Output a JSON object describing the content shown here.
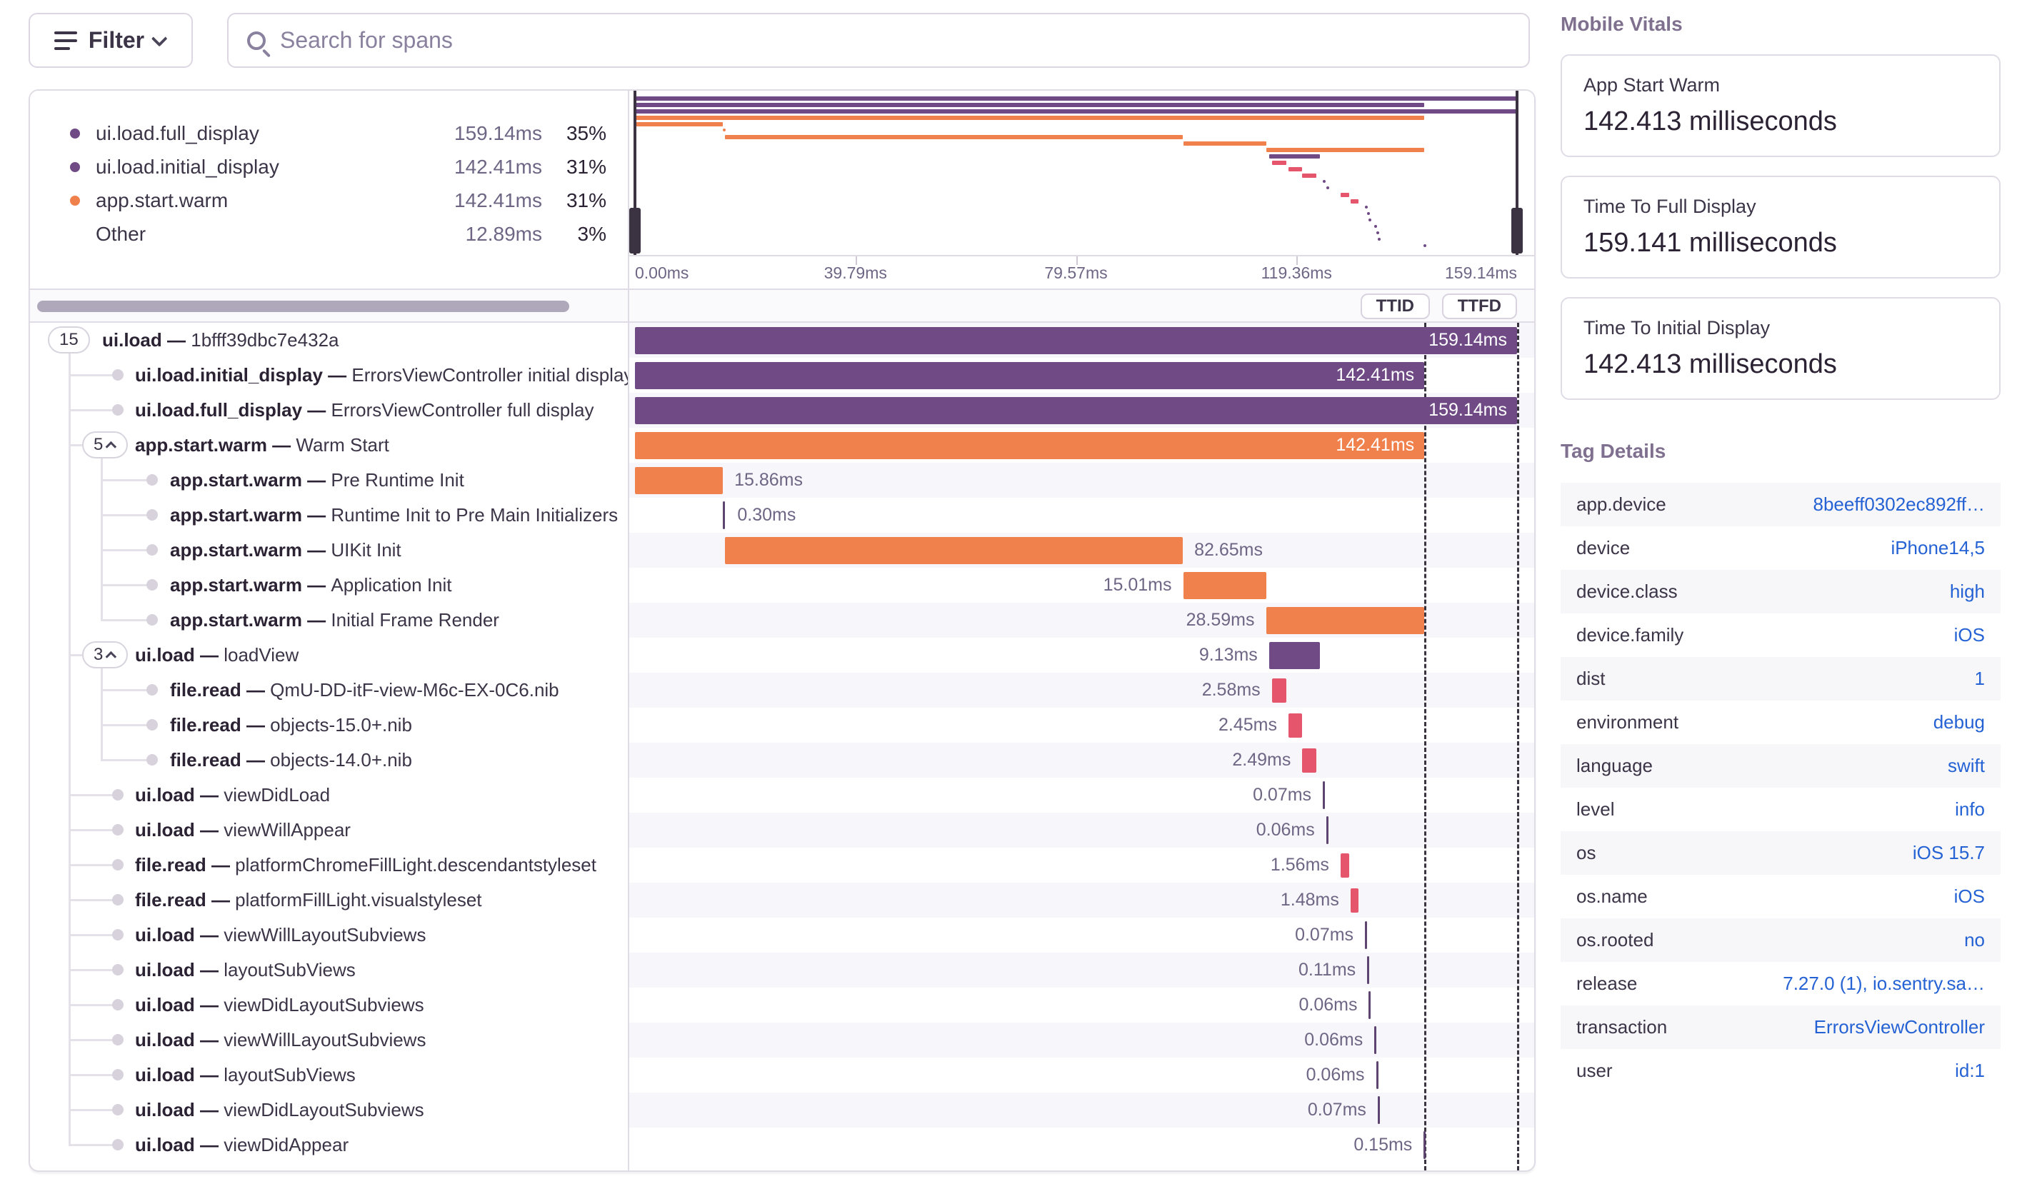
{
  "toolbar": {
    "filter_label": "Filter",
    "search_placeholder": "Search for spans"
  },
  "legend": {
    "items": [
      {
        "name": "ui.load.full_display",
        "value": "159.14ms",
        "pct": "35%",
        "color": "#6f4a85"
      },
      {
        "name": "ui.load.initial_display",
        "value": "142.41ms",
        "pct": "31%",
        "color": "#6f4a85"
      },
      {
        "name": "app.start.warm",
        "value": "142.41ms",
        "pct": "31%",
        "color": "#f0814d"
      },
      {
        "name": "Other",
        "value": "12.89ms",
        "pct": "3%",
        "color": null
      }
    ]
  },
  "axis": {
    "ticks": [
      "0.00ms",
      "39.79ms",
      "79.57ms",
      "119.36ms",
      "159.14ms"
    ]
  },
  "controls": {
    "ttid_label": "TTID",
    "ttfd_label": "TTFD"
  },
  "trace": {
    "total_ms": 159.14,
    "ttid_ms": 142.41,
    "ttfd_ms": 159.14,
    "spans": [
      {
        "op": "ui.load",
        "desc": "1bfff39dbc7e432a",
        "depth": 0,
        "badge": "15",
        "chevron": false,
        "start": 0,
        "dur": 159.14,
        "label": "159.14ms",
        "pos": "inside",
        "color": "purple"
      },
      {
        "op": "ui.load.initial_display",
        "desc": "ErrorsViewController initial display",
        "depth": 1,
        "badge": null,
        "start": 0,
        "dur": 142.41,
        "label": "142.41ms",
        "pos": "inside",
        "color": "purple"
      },
      {
        "op": "ui.load.full_display",
        "desc": "ErrorsViewController full display",
        "depth": 1,
        "badge": null,
        "start": 0,
        "dur": 159.14,
        "label": "159.14ms",
        "pos": "inside",
        "color": "purple"
      },
      {
        "op": "app.start.warm",
        "desc": "Warm Start",
        "depth": 1,
        "badge": "5",
        "chevron": true,
        "start": 0,
        "dur": 142.41,
        "label": "142.41ms",
        "pos": "inside",
        "color": "orange"
      },
      {
        "op": "app.start.warm",
        "desc": "Pre Runtime Init",
        "depth": 2,
        "badge": null,
        "start": 0,
        "dur": 15.86,
        "label": "15.86ms",
        "pos": "after",
        "color": "orange"
      },
      {
        "op": "app.start.warm",
        "desc": "Runtime Init to Pre Main Initializers",
        "depth": 2,
        "badge": null,
        "start": 15.9,
        "dur": 0.3,
        "label": "0.30ms",
        "pos": "after",
        "color": "orange"
      },
      {
        "op": "app.start.warm",
        "desc": "UIKit Init",
        "depth": 2,
        "badge": null,
        "start": 16.2,
        "dur": 82.65,
        "label": "82.65ms",
        "pos": "after",
        "color": "orange"
      },
      {
        "op": "app.start.warm",
        "desc": "Application Init",
        "depth": 2,
        "badge": null,
        "start": 98.9,
        "dur": 15.01,
        "label": "15.01ms",
        "pos": "before",
        "color": "orange"
      },
      {
        "op": "app.start.warm",
        "desc": "Initial Frame Render",
        "depth": 2,
        "badge": null,
        "start": 113.85,
        "dur": 28.59,
        "label": "28.59ms",
        "pos": "before",
        "color": "orange"
      },
      {
        "op": "ui.load",
        "desc": "loadView",
        "depth": 1,
        "badge": "3",
        "chevron": true,
        "start": 114.4,
        "dur": 9.13,
        "label": "9.13ms",
        "pos": "before",
        "color": "purple"
      },
      {
        "op": "file.read",
        "desc": "QmU-DD-itF-view-M6c-EX-0C6.nib",
        "depth": 2,
        "badge": null,
        "start": 114.9,
        "dur": 2.58,
        "label": "2.58ms",
        "pos": "before",
        "color": "pink"
      },
      {
        "op": "file.read",
        "desc": "objects-15.0+.nib",
        "depth": 2,
        "badge": null,
        "start": 117.9,
        "dur": 2.45,
        "label": "2.45ms",
        "pos": "before",
        "color": "pink"
      },
      {
        "op": "file.read",
        "desc": "objects-14.0+.nib",
        "depth": 2,
        "badge": null,
        "start": 120.4,
        "dur": 2.49,
        "label": "2.49ms",
        "pos": "before",
        "color": "pink"
      },
      {
        "op": "ui.load",
        "desc": "viewDidLoad",
        "depth": 1,
        "badge": null,
        "start": 124.1,
        "dur": 0.07,
        "label": "0.07ms",
        "pos": "before",
        "color": "purple"
      },
      {
        "op": "ui.load",
        "desc": "viewWillAppear",
        "depth": 1,
        "badge": null,
        "start": 124.7,
        "dur": 0.06,
        "label": "0.06ms",
        "pos": "before",
        "color": "purple"
      },
      {
        "op": "file.read",
        "desc": "platformChromeFillLight.descendantstyleset",
        "depth": 1,
        "badge": null,
        "start": 127.3,
        "dur": 1.56,
        "label": "1.56ms",
        "pos": "before",
        "color": "pink"
      },
      {
        "op": "file.read",
        "desc": "platformFillLight.visualstyleset",
        "depth": 1,
        "badge": null,
        "start": 129.1,
        "dur": 1.48,
        "label": "1.48ms",
        "pos": "before",
        "color": "pink"
      },
      {
        "op": "ui.load",
        "desc": "viewWillLayoutSubviews",
        "depth": 1,
        "badge": null,
        "start": 131.7,
        "dur": 0.07,
        "label": "0.07ms",
        "pos": "before",
        "color": "purple"
      },
      {
        "op": "ui.load",
        "desc": "layoutSubViews",
        "depth": 1,
        "badge": null,
        "start": 132.1,
        "dur": 0.11,
        "label": "0.11ms",
        "pos": "before",
        "color": "purple"
      },
      {
        "op": "ui.load",
        "desc": "viewDidLayoutSubviews",
        "depth": 1,
        "badge": null,
        "start": 132.4,
        "dur": 0.06,
        "label": "0.06ms",
        "pos": "before",
        "color": "purple"
      },
      {
        "op": "ui.load",
        "desc": "viewWillLayoutSubviews",
        "depth": 1,
        "badge": null,
        "start": 133.4,
        "dur": 0.06,
        "label": "0.06ms",
        "pos": "before",
        "color": "purple"
      },
      {
        "op": "ui.load",
        "desc": "layoutSubViews",
        "depth": 1,
        "badge": null,
        "start": 133.7,
        "dur": 0.06,
        "label": "0.06ms",
        "pos": "before",
        "color": "purple"
      },
      {
        "op": "ui.load",
        "desc": "viewDidLayoutSubviews",
        "depth": 1,
        "badge": null,
        "start": 134.0,
        "dur": 0.07,
        "label": "0.07ms",
        "pos": "before",
        "color": "purple"
      },
      {
        "op": "ui.load",
        "desc": "viewDidAppear",
        "depth": 1,
        "badge": null,
        "start": 142.3,
        "dur": 0.15,
        "label": "0.15ms",
        "pos": "before",
        "color": "purple"
      }
    ]
  },
  "vitals": {
    "title": "Mobile Vitals",
    "cards": [
      {
        "label": "App Start Warm",
        "value": "142.413 milliseconds"
      },
      {
        "label": "Time To Full Display",
        "value": "159.141 milliseconds"
      },
      {
        "label": "Time To Initial Display",
        "value": "142.413 milliseconds"
      }
    ]
  },
  "tags": {
    "title": "Tag Details",
    "rows": [
      {
        "key": "app.device",
        "value": "8beeff0302ec892ff…"
      },
      {
        "key": "device",
        "value": "iPhone14,5"
      },
      {
        "key": "device.class",
        "value": "high"
      },
      {
        "key": "device.family",
        "value": "iOS"
      },
      {
        "key": "dist",
        "value": "1"
      },
      {
        "key": "environment",
        "value": "debug"
      },
      {
        "key": "language",
        "value": "swift"
      },
      {
        "key": "level",
        "value": "info"
      },
      {
        "key": "os",
        "value": "iOS 15.7"
      },
      {
        "key": "os.name",
        "value": "iOS"
      },
      {
        "key": "os.rooted",
        "value": "no"
      },
      {
        "key": "release",
        "value": "7.27.0 (1), io.sentry.sa…"
      },
      {
        "key": "transaction",
        "value": "ErrorsViewController"
      },
      {
        "key": "user",
        "value": "id:1"
      }
    ]
  },
  "colors": {
    "purple": "#6f4a85",
    "orange": "#f0814d",
    "pink": "#e5566d",
    "tick": "#5e4470"
  }
}
